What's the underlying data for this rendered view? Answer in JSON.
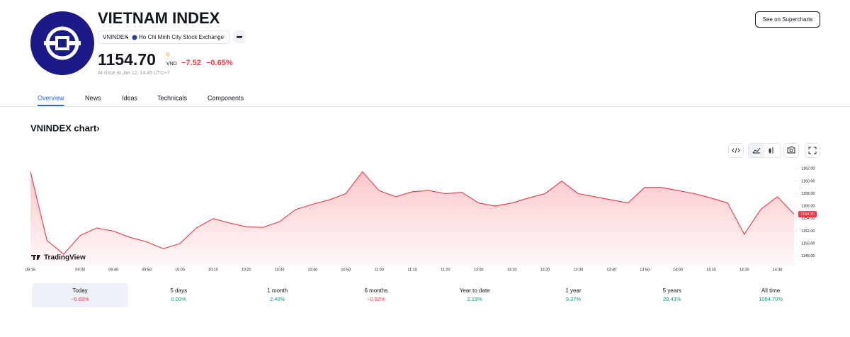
{
  "header": {
    "title": "VIETNAM INDEX",
    "symbol": "VNINDEX",
    "exchange": "Ho Chi Minh City Stock Exchange",
    "price": "1154.70",
    "currency": "VND",
    "change": "−7.52",
    "change_percent": "−0.65%",
    "close_note": "At close at Jan 12, 14:45 UTC+7",
    "supercharts_button": "See on Supercharts"
  },
  "tabs": [
    "Overview",
    "News",
    "Ideas",
    "Technicals",
    "Components"
  ],
  "section_title": "VNINDEX chart›",
  "chart_data": {
    "type": "area",
    "watermark": "TradingView",
    "color": "#f23645",
    "categories": [
      "09:15",
      null,
      null,
      "09:30",
      null,
      "09:40",
      null,
      "09:50",
      null,
      "10:00",
      null,
      "10:10",
      null,
      "10:20",
      null,
      "10:30",
      null,
      "10:40",
      null,
      "10:50",
      null,
      "11:00",
      null,
      "11:10",
      null,
      "11:20",
      null,
      "13:00",
      null,
      "13:10",
      null,
      "13:20",
      null,
      "13:30",
      null,
      "13:40",
      null,
      "13:50",
      null,
      "14:00",
      null,
      "14:10",
      null,
      "14:20",
      null,
      "14:30",
      null
    ],
    "values": [
      1161.5,
      1150.5,
      1148.3,
      1151.3,
      1152.5,
      1152,
      1151,
      1150.3,
      1149.2,
      1150,
      1152.5,
      1154,
      1153.3,
      1152.7,
      1152.6,
      1153.5,
      1155.5,
      1156.3,
      1157,
      1158,
      1161.5,
      1158.5,
      1157.5,
      1158.3,
      1158.5,
      1158,
      1158.2,
      1156.5,
      1156,
      1156.5,
      1157.3,
      1158,
      1160,
      1158,
      1157.5,
      1157,
      1156.5,
      1159,
      1159,
      1158.5,
      1158,
      1157.3,
      1156.5,
      1151.5,
      1155.5,
      1157.5,
      1154.7
    ],
    "ylim": [
      1146.5,
      1162.7
    ],
    "yticks": [
      {
        "value": 1148,
        "label": "1148.00"
      },
      {
        "value": 1150,
        "label": "1150.00"
      },
      {
        "value": 1152,
        "label": "1152.00"
      },
      {
        "value": 1154,
        "label": "1154.00"
      },
      {
        "value": 1156,
        "label": "1156.00"
      },
      {
        "value": 1158,
        "label": "1158.00"
      },
      {
        "value": 1160,
        "label": "1160.00"
      },
      {
        "value": 1162,
        "label": "1162.00"
      }
    ],
    "last_price": {
      "value": 1154.7,
      "label": "1154.70"
    }
  },
  "periods": [
    {
      "label": "Today",
      "value": "−0.65%"
    },
    {
      "label": "5 days",
      "value": "0.00%"
    },
    {
      "label": "1 month",
      "value": "2.40%"
    },
    {
      "label": "6 months",
      "value": "−0.92%"
    },
    {
      "label": "Year to date",
      "value": "2.19%"
    },
    {
      "label": "1 year",
      "value": "9.37%"
    },
    {
      "label": "5 years",
      "value": "28.43%"
    },
    {
      "label": "All time",
      "value": "1054.70%"
    }
  ]
}
